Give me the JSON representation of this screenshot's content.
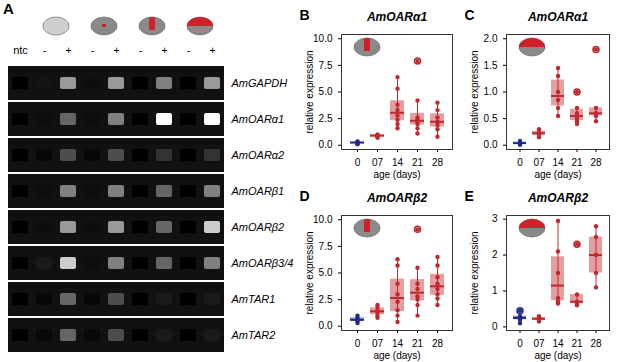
{
  "chart_data": [
    {
      "type": "gel",
      "label": "A",
      "lanes": [
        "ntc",
        "-",
        "+",
        "-",
        "+",
        "-",
        "+",
        "-",
        "+"
      ],
      "genes": [
        "AmGAPDH",
        "AmOARα1",
        "AmOARα2",
        "AmOARβ1",
        "AmOARβ2",
        "AmOARβ3/4",
        "AmTAR1",
        "AmTAR2"
      ],
      "band_range": [
        0,
        1
      ],
      "bands": [
        [
          0,
          0.08,
          0.6,
          0.05,
          0.6,
          0,
          0.5,
          0,
          0.6
        ],
        [
          0,
          0.05,
          0.4,
          0.05,
          0.5,
          0,
          1.0,
          0,
          1.0
        ],
        [
          0,
          0.03,
          0.3,
          0.03,
          0.3,
          0,
          0.2,
          0,
          0.2
        ],
        [
          0,
          0.05,
          0.5,
          0.05,
          0.5,
          0,
          0.4,
          0,
          0.5
        ],
        [
          0,
          0.05,
          0.6,
          0.05,
          0.6,
          0,
          0.4,
          0,
          0.8
        ],
        [
          0,
          0.1,
          0.8,
          0.05,
          0.5,
          0,
          0.4,
          0,
          0.5
        ],
        [
          0,
          0.03,
          0.4,
          0.03,
          0.3,
          0,
          0.1,
          0,
          0.1
        ],
        [
          0,
          0.03,
          0.4,
          0.03,
          0.3,
          0,
          0.1,
          0,
          0.1
        ]
      ]
    },
    {
      "type": "box",
      "label": "B",
      "title": "AmOARα1",
      "x_label": "age (days)",
      "y_label": "relative expression",
      "categories": [
        "0",
        "07",
        "14",
        "21",
        "28"
      ],
      "colors": [
        "#1f2a8a",
        "#c0282d",
        "#c0282d",
        "#c0282d",
        "#c0282d"
      ],
      "values": [
        [
          0.1,
          0.2,
          0.25,
          0.3,
          0.35
        ],
        [
          0.7,
          0.8,
          0.9,
          1.0,
          1.0
        ],
        [
          1.6,
          2.0,
          2.4,
          2.8,
          3.3,
          3.8,
          5.3,
          6.4
        ],
        [
          1.1,
          1.6,
          2.0,
          2.2,
          2.4,
          2.6,
          4.2,
          7.9
        ],
        [
          0.8,
          1.5,
          1.9,
          2.2,
          2.6,
          3.3,
          4.0
        ]
      ],
      "ylim": [
        -0.4,
        10.4
      ],
      "yticks": [
        {
          "value": 0,
          "label": "0.0"
        },
        2.5,
        {
          "value": 5,
          "label": "5.0"
        },
        7.5,
        {
          "value": 10,
          "label": "10.0"
        }
      ],
      "grid": false
    },
    {
      "type": "box",
      "label": "C",
      "title": "AmOARα1",
      "x_label": "age (days)",
      "y_label": "relative expression",
      "categories": [
        "0",
        "07",
        "14",
        "21",
        "28"
      ],
      "colors": [
        "#1f2a8a",
        "#c0282d",
        "#c0282d",
        "#c0282d",
        "#c0282d"
      ],
      "values": [
        [
          0.01,
          0.03,
          0.05,
          0.08
        ],
        [
          0.15,
          0.2,
          0.25,
          0.3
        ],
        [
          0.55,
          0.7,
          0.85,
          1.0,
          1.3,
          1.45
        ],
        [
          0.4,
          0.45,
          0.5,
          0.6,
          0.7,
          1.0
        ],
        [
          0.45,
          0.55,
          0.6,
          0.7,
          1.8
        ]
      ],
      "ylim": [
        -0.08,
        2.08
      ],
      "yticks": [
        {
          "value": 0,
          "label": "0.0"
        },
        0.5,
        {
          "value": 1,
          "label": "1.0"
        },
        1.5,
        {
          "value": 2,
          "label": "2.0"
        }
      ],
      "grid": false
    },
    {
      "type": "box",
      "label": "D",
      "title": "AmOARβ2",
      "x_label": "age (days)",
      "y_label": "relative expression",
      "categories": [
        "0",
        "07",
        "14",
        "21",
        "28"
      ],
      "colors": [
        "#1f2a8a",
        "#c0282d",
        "#c0282d",
        "#c0282d",
        "#c0282d"
      ],
      "values": [
        [
          0.3,
          0.5,
          0.6,
          0.8,
          1.0
        ],
        [
          0.8,
          1.0,
          1.3,
          1.5,
          1.8,
          2.0
        ],
        [
          0.4,
          1.0,
          1.5,
          2.3,
          3.0,
          4.0,
          5.7,
          6.3
        ],
        [
          1.0,
          2.0,
          2.5,
          2.8,
          3.5,
          4.0,
          5.5,
          9.1
        ],
        [
          2.0,
          2.6,
          3.0,
          3.5,
          4.0,
          4.6,
          5.7,
          6.5
        ]
      ],
      "ylim": [
        -0.4,
        10.4
      ],
      "yticks": [
        {
          "value": 0,
          "label": "0.0"
        },
        2.5,
        {
          "value": 5,
          "label": "5.0"
        },
        7.5,
        {
          "value": 10,
          "label": "10.0"
        }
      ],
      "grid": false
    },
    {
      "type": "box",
      "label": "E",
      "title": "AmOARβ2",
      "x_label": "age (days)",
      "y_label": "relative expression",
      "categories": [
        "0",
        "07",
        "14",
        "21",
        "28"
      ],
      "colors": [
        "#1f2a8a",
        "#c0282d",
        "#c0282d",
        "#c0282d",
        "#c0282d"
      ],
      "values": [
        [
          0.1,
          0.2,
          0.25,
          0.3,
          0.45
        ],
        [
          0.15,
          0.2,
          0.25,
          0.3
        ],
        [
          0.65,
          0.7,
          0.8,
          1.5,
          2.1,
          2.95
        ],
        [
          0.6,
          0.65,
          0.7,
          0.9,
          2.3
        ],
        [
          1.1,
          1.5,
          2.0,
          2.5,
          2.8
        ]
      ],
      "ylim": [
        -0.1,
        3.1
      ],
      "yticks": [
        0,
        1,
        2,
        3
      ],
      "grid": false
    }
  ]
}
